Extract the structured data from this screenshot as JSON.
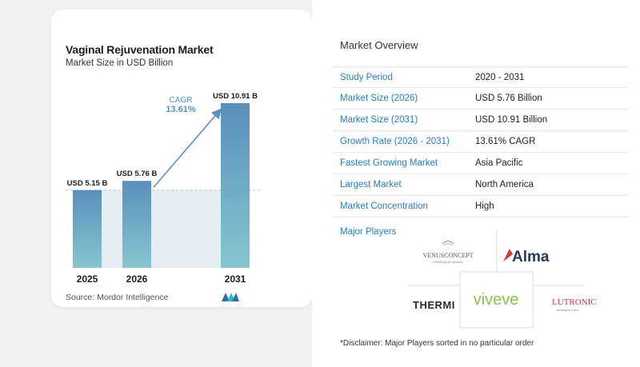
{
  "chart_data": {
    "type": "bar",
    "title": "Vaginal Rejuvenation Market",
    "subtitle": "Market Size in USD Billion",
    "categories": [
      "2025",
      "2026",
      "2031"
    ],
    "values": [
      5.15,
      5.76,
      10.91
    ],
    "data_labels": [
      "USD 5.15 B",
      "USD 5.76 B",
      "USD 10.91 B"
    ],
    "cagr_label": "CAGR",
    "cagr_value": "13.61%",
    "grid": false,
    "colors": {
      "bar_top": "#5a8fbc",
      "bar_bottom": "#86c6d0",
      "shade": "#e6eef4",
      "arrow": "#5a8fbc",
      "cagr_text": "#5a8fbc"
    }
  },
  "source": "Source:  Mordor Intelligence",
  "overview": {
    "title": "Market Overview",
    "rows": [
      {
        "label": "Study Period",
        "value": "2020 - 2031"
      },
      {
        "label": "Market Size (2026)",
        "value": "USD 5.76 Billion"
      },
      {
        "label": "Market Size (2031)",
        "value": "USD 10.91 Billion"
      },
      {
        "label": "Growth Rate (2026 - 2031)",
        "value": "13.61% CAGR"
      },
      {
        "label": "Fastest Growing Market",
        "value": "Asia Pacific"
      },
      {
        "label": "Largest Market",
        "value": "North America"
      },
      {
        "label": "Market Concentration",
        "value": "High"
      }
    ]
  },
  "players": {
    "title": "Major Players",
    "logos": {
      "venus": "VENUSCONCEPT",
      "venus_tag": "Redefining the aesthetic",
      "alma": "Alma",
      "thermi": "THERMI",
      "viveve": "viveve",
      "lutronic": "LUTRONIC",
      "lutronic_tag": "Intelligent Care"
    },
    "disclaimer": "*Disclaimer: Major Players sorted in no particular order"
  },
  "colors": {
    "label_blue": "#2a7bbf",
    "divider": "#e3e6ea"
  }
}
